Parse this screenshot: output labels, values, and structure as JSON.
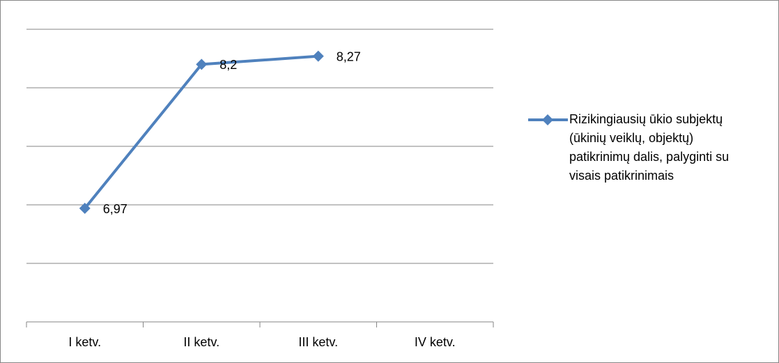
{
  "chart_data": {
    "type": "line",
    "categories": [
      "I ketv.",
      "II ketv.",
      "III ketv.",
      "IV ketv."
    ],
    "series": [
      {
        "name": "Rizikingiausių ūkio subjektų (ūkinių veiklų, objektų) patikrinimų dalis, palyginti su visais patikrinimais",
        "color": "#4f81bd",
        "values": [
          6.97,
          8.2,
          8.27,
          null
        ],
        "value_labels": [
          "6,97",
          "8,2",
          "8,27",
          null
        ]
      }
    ],
    "ylim": [
      6,
      8.5
    ],
    "yticks": [
      6,
      6.5,
      7,
      7.5,
      8,
      8.5
    ],
    "grid": true,
    "legend": "right"
  }
}
